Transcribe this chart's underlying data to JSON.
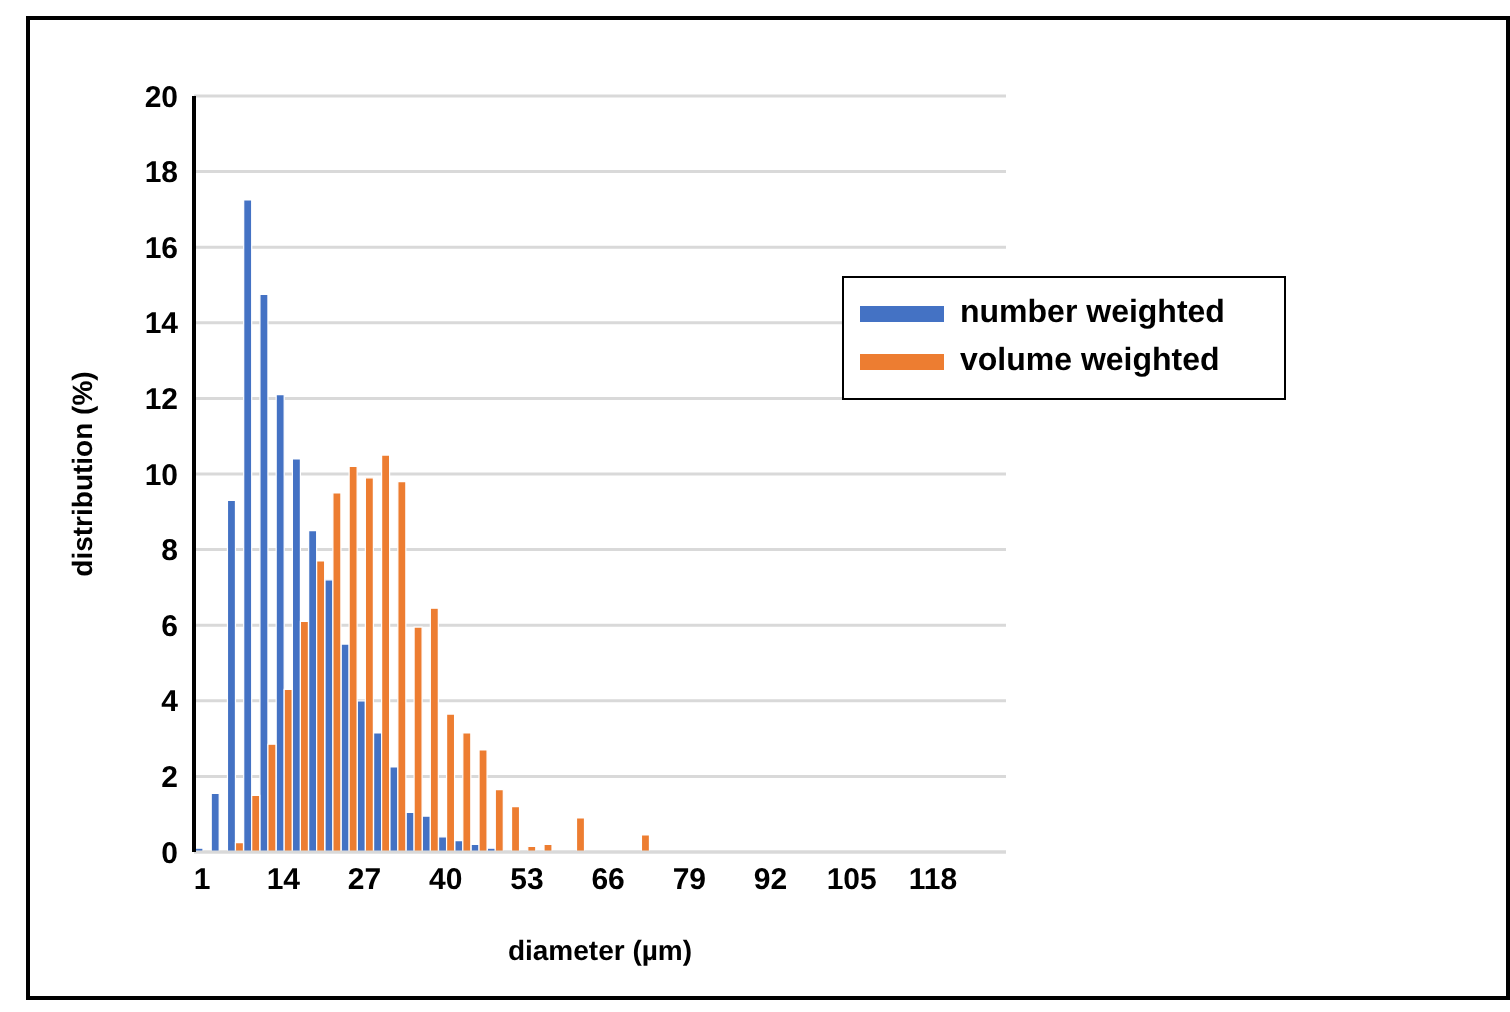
{
  "chart_data": {
    "type": "bar",
    "xlabel": "diameter (µm)",
    "ylabel": "distribution (%)",
    "categories": [
      "1",
      null,
      null,
      null,
      null,
      "14",
      null,
      null,
      null,
      null,
      "27",
      null,
      null,
      null,
      null,
      "40",
      null,
      null,
      null,
      null,
      "53",
      null,
      null,
      null,
      null,
      "66",
      null,
      null,
      null,
      null,
      "79",
      null,
      null,
      null,
      null,
      "92",
      null,
      null,
      null,
      null,
      "105",
      null,
      null,
      null,
      null,
      "118",
      null,
      null,
      null,
      null
    ],
    "series": [
      {
        "name": "number weighted",
        "color": "#4472c4",
        "values": [
          0.1,
          1.55,
          9.3,
          17.25,
          14.75,
          12.1,
          10.4,
          8.5,
          7.2,
          5.5,
          4.0,
          3.15,
          2.25,
          1.05,
          0.95,
          0.4,
          0.3,
          0.2,
          0.1,
          0,
          0,
          0,
          0,
          0,
          0,
          0,
          0,
          0,
          0,
          0,
          0,
          0,
          0,
          0,
          0,
          0,
          0,
          0,
          0,
          0,
          0,
          0,
          0,
          0,
          0,
          0,
          0,
          0,
          0,
          0
        ]
      },
      {
        "name": "volume weighted",
        "color": "#ed7d31",
        "values": [
          0,
          0,
          0.25,
          1.5,
          2.85,
          4.3,
          6.1,
          7.7,
          9.5,
          10.2,
          9.9,
          10.5,
          9.8,
          5.95,
          6.45,
          3.65,
          3.15,
          2.7,
          1.65,
          1.2,
          0.15,
          0.2,
          0,
          0.9,
          0,
          0,
          0,
          0.45,
          0,
          0,
          0,
          0,
          0,
          0,
          0,
          0,
          0,
          0,
          0,
          0,
          0,
          0,
          0,
          0,
          0,
          0,
          0,
          0,
          0,
          0
        ]
      }
    ],
    "ylim": [
      0,
      20
    ],
    "yticks": [
      0,
      2,
      4,
      6,
      8,
      10,
      12,
      14,
      16,
      18,
      20
    ],
    "grid": "y",
    "legend": "top right"
  }
}
